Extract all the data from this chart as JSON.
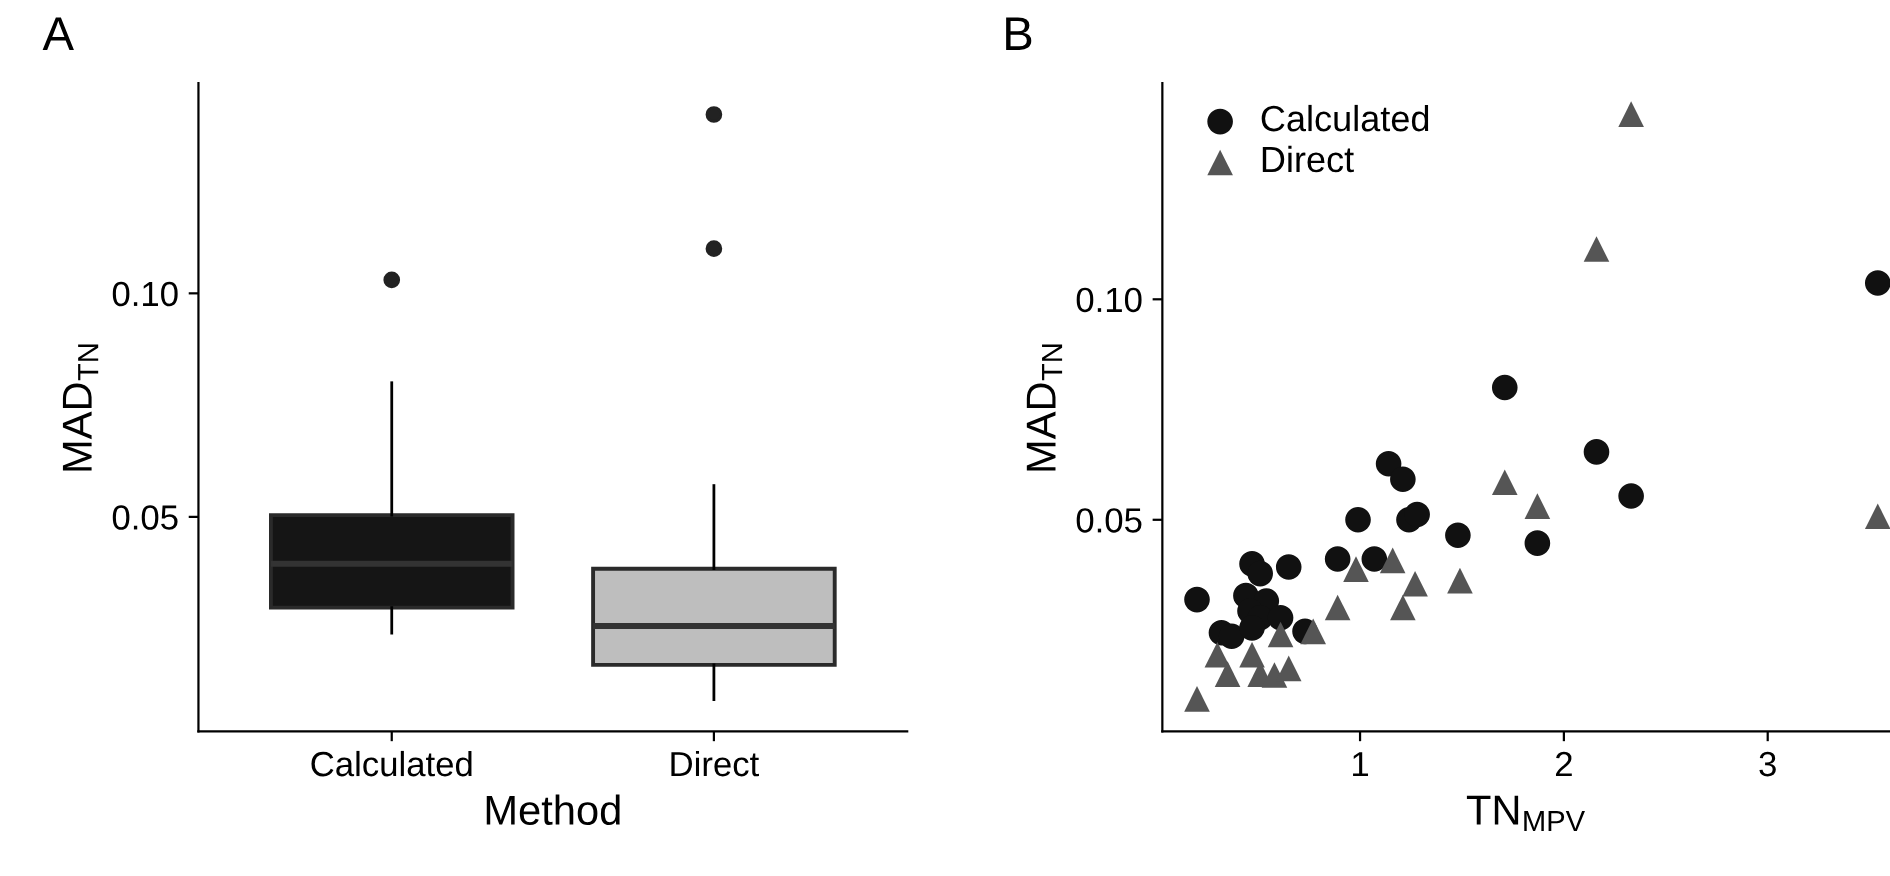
{
  "chart_data": [
    {
      "type": "box",
      "title": "A",
      "xlabel": "Method",
      "ylabel": "MAD$_{TN}$",
      "categories": [
        "Calculated",
        "Direct"
      ],
      "colors": [
        "#151515",
        "#bebebe"
      ],
      "boxes": [
        {
          "low": 0.024,
          "q1": 0.0297,
          "median": 0.0395,
          "q3": 0.0504,
          "high": 0.08,
          "outliers": [
            0.103
          ]
        },
        {
          "low": 0.0091,
          "q1": 0.0169,
          "median": 0.0256,
          "q3": 0.0384,
          "high": 0.057,
          "outliers": [
            0.11,
            0.14
          ]
        }
      ],
      "ylim": [
        0.002,
        0.147
      ],
      "yticks": [
        0.05,
        {
          "value": 0.1,
          "label": "0.10"
        }
      ],
      "grid": false
    },
    {
      "type": "scatter",
      "title": "B",
      "xlabel": "TN$_{MPV}$",
      "ylabel": "MAD$_{TN}$",
      "legend": "top left",
      "grid": false,
      "xlim": [
        0.03,
        3.6
      ],
      "xticks": [
        1,
        2,
        3
      ],
      "ylim": [
        0.002,
        0.149
      ],
      "yticks": [
        0.05,
        {
          "value": 0.1,
          "label": "0.10"
        }
      ],
      "series": [
        {
          "name": "Calculated",
          "color": "#111111",
          "marker": "circle",
          "x": [
            0.2,
            0.32,
            0.37,
            0.47,
            0.51,
            0.44,
            0.54,
            0.46,
            0.51,
            0.65,
            0.61,
            0.47,
            0.73,
            0.89,
            0.99,
            1.07,
            1.14,
            1.21,
            1.24,
            1.28,
            1.48,
            1.71,
            1.87,
            2.16,
            2.33,
            3.54
          ],
          "values": [
            0.0319,
            0.0244,
            0.0236,
            0.04,
            0.0378,
            0.0328,
            0.0316,
            0.0293,
            0.0278,
            0.0393,
            0.0278,
            0.0255,
            0.0247,
            0.0411,
            0.05,
            0.0411,
            0.0627,
            0.0592,
            0.05,
            0.0512,
            0.0465,
            0.08,
            0.0447,
            0.0654,
            0.0554,
            0.1037
          ]
        },
        {
          "name": "Direct",
          "color": "#555555",
          "marker": "triangle",
          "x": [
            0.2,
            0.3,
            0.35,
            0.47,
            0.51,
            0.58,
            0.65,
            0.61,
            0.77,
            0.89,
            0.98,
            1.16,
            1.27,
            1.21,
            1.49,
            1.71,
            1.87,
            2.16,
            2.33,
            3.54
          ],
          "values": [
            0.0094,
            0.0194,
            0.015,
            0.0194,
            0.015,
            0.0148,
            0.0163,
            0.024,
            0.0247,
            0.0301,
            0.0388,
            0.0408,
            0.0355,
            0.0301,
            0.0362,
            0.0585,
            0.0531,
            0.1114,
            0.142,
            0.0508
          ]
        }
      ]
    }
  ]
}
